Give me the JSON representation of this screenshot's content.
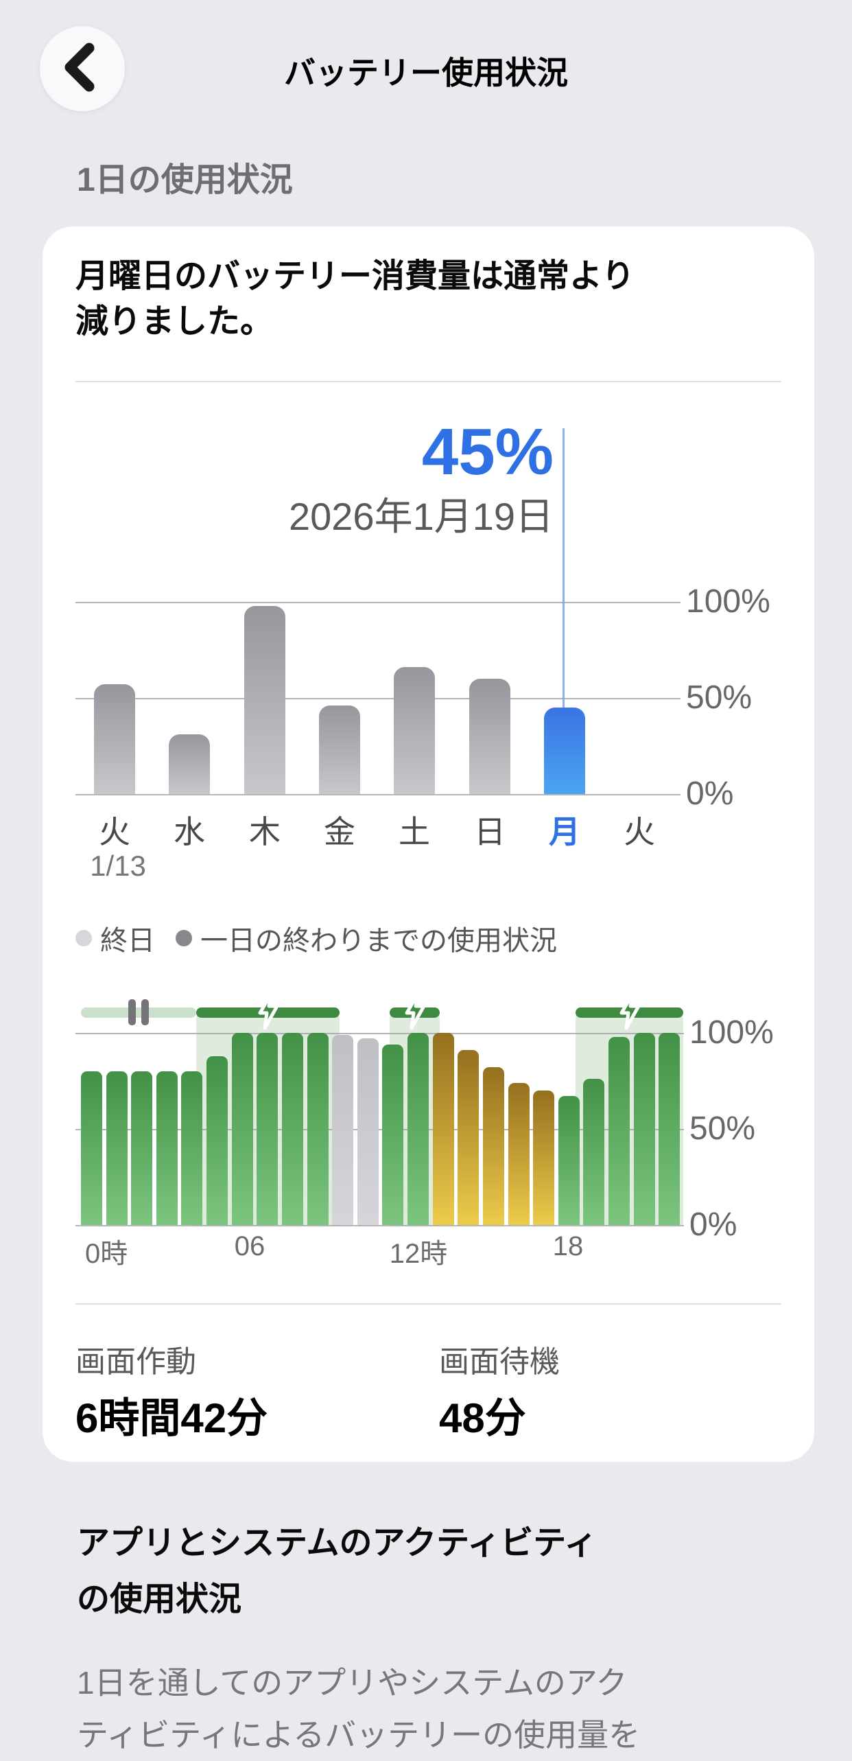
{
  "header": {
    "title": "バッテリー使用状況"
  },
  "section_daily_label": "1日の使用状況",
  "battery_card": {
    "headline_lines": [
      "月曜日のバッテリー消費量は通常より",
      "減りました。"
    ],
    "callout": {
      "percent": "45%",
      "date": "2026年1月19日"
    },
    "stats": {
      "screen_on_label": "画面作動",
      "screen_on_value": "6時間42分",
      "screen_idle_label": "画面待機",
      "screen_idle_value": "48分"
    }
  },
  "section_apps": {
    "title_lines": [
      "アプリとシステムのアクティビティ",
      "の使用状況"
    ],
    "body_lines": [
      "1日を通してのアプリやシステムのアク",
      "ティビティによるバッテリーの使用量を"
    ]
  },
  "colors": {
    "accent_blue": "#2f70e4",
    "charging_green": "#3e8a41",
    "gold": "#edcb4a",
    "page_background": "#e9e9ee"
  },
  "chart_data": [
    {
      "name": "weekly-battery-usage",
      "type": "bar",
      "categories": [
        "火",
        "水",
        "木",
        "金",
        "土",
        "日",
        "月",
        "火"
      ],
      "values": [
        57,
        31,
        98,
        46,
        66,
        60,
        45,
        null
      ],
      "unit": "%",
      "ylim": [
        0,
        100
      ],
      "yticks": [
        "100%",
        "50%",
        "0%"
      ],
      "highlight_index": 6,
      "callout_percent": "45%",
      "callout_date": "2026年1月19日",
      "start_date_label": "1/13",
      "legend": [
        {
          "label": "終日",
          "dot": "light-gray"
        },
        {
          "label": "一日の終わりまでの使用状況",
          "dot": "dark-gray"
        }
      ]
    },
    {
      "name": "daily-battery-level",
      "type": "bar",
      "x_hours": [
        0,
        1,
        2,
        3,
        4,
        5,
        6,
        7,
        8,
        9,
        10,
        11,
        12,
        13,
        14,
        15,
        16,
        17,
        18,
        19,
        20,
        21,
        22,
        23
      ],
      "values": [
        80,
        80,
        80,
        80,
        80,
        88,
        100,
        100,
        100,
        100,
        99,
        97,
        94,
        100,
        100,
        91,
        82,
        74,
        70,
        67,
        76,
        98,
        100,
        100
      ],
      "bar_styles": [
        "green",
        "green",
        "green",
        "green",
        "green",
        "green",
        "green",
        "green",
        "green",
        "green",
        "gray",
        "gray",
        "green",
        "green",
        "gold",
        "gold",
        "gold",
        "gold",
        "gold",
        "green",
        "green",
        "green",
        "green",
        "green"
      ],
      "unit": "%",
      "ylim": [
        0,
        100
      ],
      "yticks": [
        "100%",
        "50%",
        "0%"
      ],
      "xticks": [
        {
          "label": "0時",
          "hour": 0
        },
        {
          "label": "06",
          "hour": 6
        },
        {
          "label": "12時",
          "hour": 12
        },
        {
          "label": "18",
          "hour": 18
        }
      ],
      "segments": [
        {
          "kind": "paused",
          "from_hour": 0,
          "to_hour": 4.6
        },
        {
          "kind": "charging",
          "from_hour": 4.6,
          "to_hour": 10.3
        },
        {
          "kind": "charging",
          "from_hour": 12.3,
          "to_hour": 14.3
        },
        {
          "kind": "charging",
          "from_hour": 19.7,
          "to_hour": 24
        }
      ]
    }
  ]
}
